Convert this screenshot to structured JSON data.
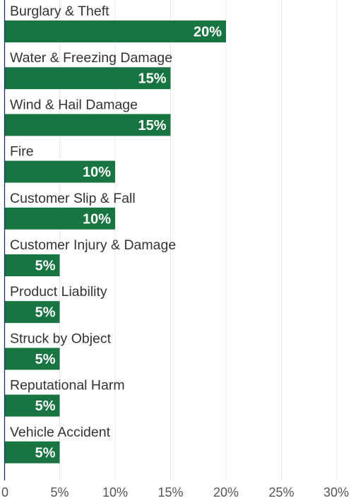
{
  "chart_data": {
    "type": "bar",
    "orientation": "horizontal",
    "categories": [
      "Burglary & Theft",
      "Water & Freezing Damage",
      "Wind & Hail Damage",
      "Fire",
      "Customer Slip & Fall",
      "Customer Injury & Damage",
      "Product Liability",
      "Struck by Object",
      "Reputational Harm",
      "Vehicle Accident"
    ],
    "values": [
      20,
      15,
      15,
      10,
      10,
      5,
      5,
      5,
      5,
      5
    ],
    "value_labels": [
      "20%",
      "15%",
      "15%",
      "10%",
      "10%",
      "5%",
      "5%",
      "5%",
      "5%",
      "5%"
    ],
    "xlim": [
      0,
      30
    ],
    "x_ticks": [
      0,
      5,
      10,
      15,
      20,
      25,
      30
    ],
    "x_tick_labels": [
      "0",
      "5%",
      "10%",
      "15%",
      "20%",
      "25%",
      "30%"
    ],
    "grid": "vertical",
    "bar_color": "#187440",
    "title": "",
    "xlabel": "",
    "ylabel": ""
  }
}
